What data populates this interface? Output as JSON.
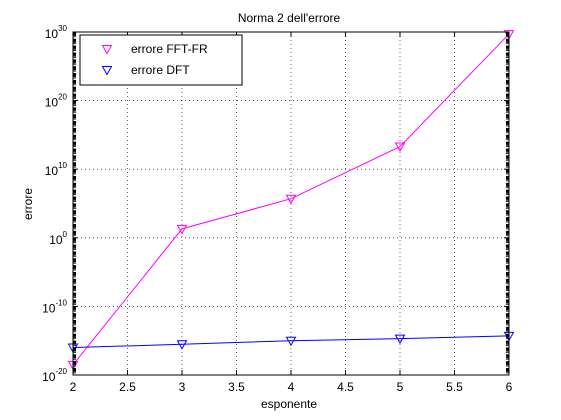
{
  "chart_data": {
    "type": "line",
    "title": "Norma 2 dell'errore",
    "xlabel": "esponente",
    "ylabel": "errore",
    "xlim": [
      2,
      6
    ],
    "ylim_log10": [
      -20,
      30
    ],
    "yscale": "log",
    "grid": true,
    "legend_position": "top-left",
    "x_ticks": [
      "2",
      "2.5",
      "3",
      "3.5",
      "4",
      "4.5",
      "5",
      "5.5",
      "6"
    ],
    "y_ticks_exponent": [
      "-20",
      "-10",
      "0",
      "10",
      "20",
      "30"
    ],
    "y_tick_base": "10",
    "series": [
      {
        "name": "errore FFT-FR",
        "color": "#ff00ff",
        "marker": "triangle-down",
        "x": [
          2,
          3,
          4,
          5,
          6
        ],
        "y": [
          3e-19,
          20.0,
          500000.0,
          20000000000000.0,
          5e+29
        ]
      },
      {
        "name": "errore DFT",
        "color": "#0000ff",
        "marker": "triangle-down",
        "x": [
          2,
          3,
          4,
          5,
          6
        ],
        "y": [
          1e-16,
          3e-16,
          1e-15,
          2e-15,
          5e-15
        ]
      }
    ]
  }
}
